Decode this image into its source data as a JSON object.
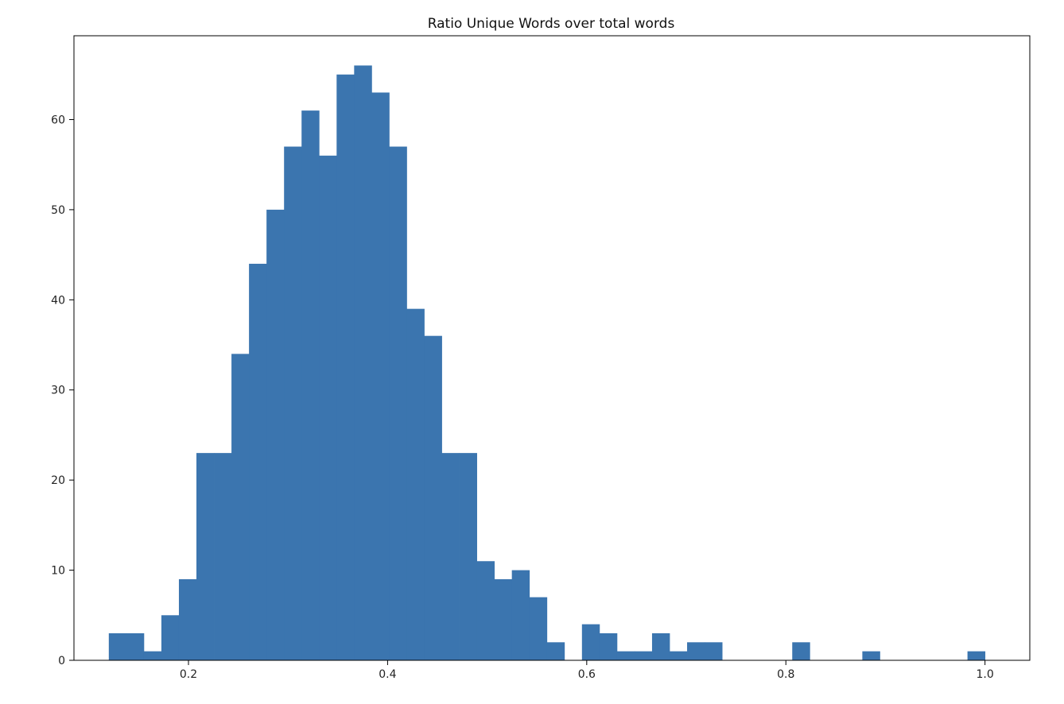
{
  "chart_data": {
    "type": "bar",
    "title": "Ratio Unique Words over total words",
    "xlabel": "",
    "ylabel": "",
    "xlim": [
      0.085,
      1.045
    ],
    "ylim": [
      0,
      69.3
    ],
    "xticks": [
      0.2,
      0.4,
      0.6,
      0.8,
      1.0
    ],
    "xtick_labels": [
      "0.2",
      "0.4",
      "0.6",
      "0.8",
      "1.0"
    ],
    "yticks": [
      0,
      10,
      20,
      30,
      40,
      50,
      60
    ],
    "ytick_labels": [
      "0",
      "10",
      "20",
      "30",
      "40",
      "50",
      "60"
    ],
    "bin_start": 0.12,
    "bin_end": 1.0,
    "counts": [
      3,
      3,
      1,
      5,
      9,
      23,
      23,
      34,
      44,
      50,
      57,
      61,
      56,
      65,
      66,
      63,
      57,
      39,
      36,
      23,
      23,
      11,
      9,
      10,
      7,
      2,
      0,
      4,
      3,
      1,
      1,
      3,
      1,
      2,
      2,
      0,
      0,
      0,
      0,
      2,
      0,
      0,
      0,
      1,
      0,
      0,
      0,
      0,
      0,
      1
    ],
    "color": "#3b75af",
    "grid": false,
    "legend": "none"
  }
}
